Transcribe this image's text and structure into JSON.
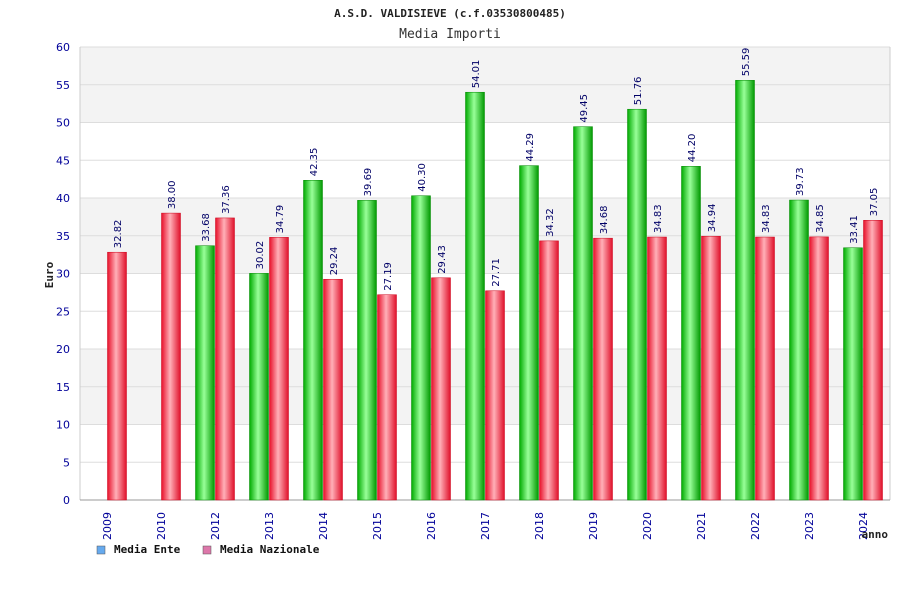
{
  "chart_data": {
    "type": "bar",
    "title": "A.S.D. VALDISIEVE (c.f.03530800485)",
    "subtitle": "Media Importi",
    "xlabel": "anno",
    "ylabel": "Euro",
    "ylim": [
      0,
      60
    ],
    "ytick_step": 5,
    "grid": true,
    "legend_position": "bottom-left",
    "categories": [
      "2009",
      "2010",
      "2012",
      "2013",
      "2014",
      "2015",
      "2016",
      "2017",
      "2018",
      "2019",
      "2020",
      "2021",
      "2022",
      "2023",
      "2024"
    ],
    "series": [
      {
        "name": "Media Ente",
        "bar_color": "#00bb00",
        "legend_color": "#66aaee",
        "values": [
          null,
          null,
          33.68,
          30.02,
          42.35,
          39.69,
          40.3,
          54.01,
          44.29,
          49.45,
          51.76,
          44.2,
          55.59,
          39.73,
          33.41
        ],
        "labels": [
          "",
          "",
          "33.68",
          "30.02",
          "42.35",
          "39.69",
          "40.30",
          "54.01",
          "44.29",
          "49.45",
          "51.76",
          "44.20",
          "55.59",
          "39.73",
          "33.41"
        ]
      },
      {
        "name": "Media Nazionale",
        "bar_color": "#ee2233",
        "legend_color": "#dd77aa",
        "values": [
          32.82,
          38.0,
          37.36,
          34.79,
          29.24,
          27.19,
          29.43,
          27.71,
          34.32,
          34.68,
          34.83,
          34.94,
          34.83,
          34.85,
          37.05
        ],
        "labels": [
          "32.82",
          "38.00",
          "37.36",
          "34.79",
          "29.24",
          "27.19",
          "29.43",
          "27.71",
          "34.32",
          "34.68",
          "34.83",
          "34.94",
          "34.83",
          "34.85",
          "37.05"
        ]
      }
    ]
  }
}
